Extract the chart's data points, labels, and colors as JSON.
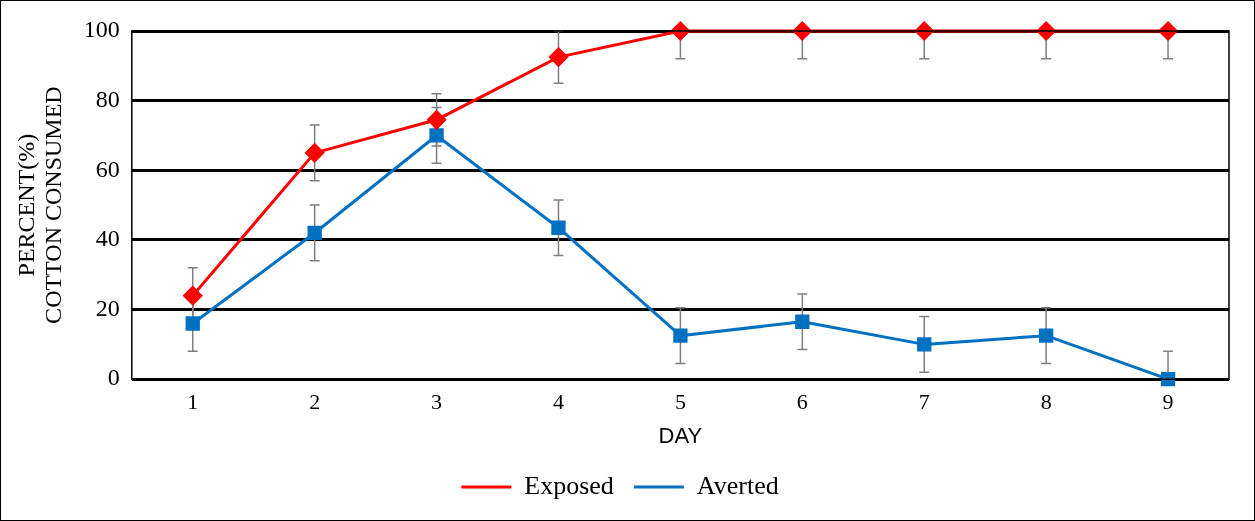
{
  "chart_data": {
    "type": "line",
    "xlabel": "DAY",
    "ylabel": "PERCENT(%) COTTON CONSUMED",
    "categories": [
      "1",
      "2",
      "3",
      "4",
      "5",
      "6",
      "7",
      "8",
      "9"
    ],
    "series": [
      {
        "name": "Exposed",
        "color": "#ff0000",
        "marker": "diamond",
        "values": [
          24,
          65,
          74.5,
          92.5,
          100,
          100,
          100,
          100,
          100
        ],
        "errors": [
          8,
          8,
          7.5,
          [
            85,
            100
          ],
          [
            92,
            100
          ],
          [
            92,
            100
          ],
          [
            92,
            100
          ],
          [
            92,
            100
          ],
          [
            92,
            100
          ]
        ]
      },
      {
        "name": "Averted",
        "color": "#0070c0",
        "marker": "square",
        "values": [
          16,
          42,
          70,
          43.5,
          12.5,
          16.5,
          10,
          12.5,
          0
        ],
        "errors": [
          8,
          8,
          8,
          8,
          8,
          8,
          8,
          8,
          [
            0,
            8
          ]
        ]
      }
    ],
    "ylim": [
      0,
      100
    ],
    "yticks": [
      0,
      20,
      40,
      60,
      80,
      100
    ],
    "grid": "y",
    "legend": "bottom",
    "line_style": "solid"
  }
}
